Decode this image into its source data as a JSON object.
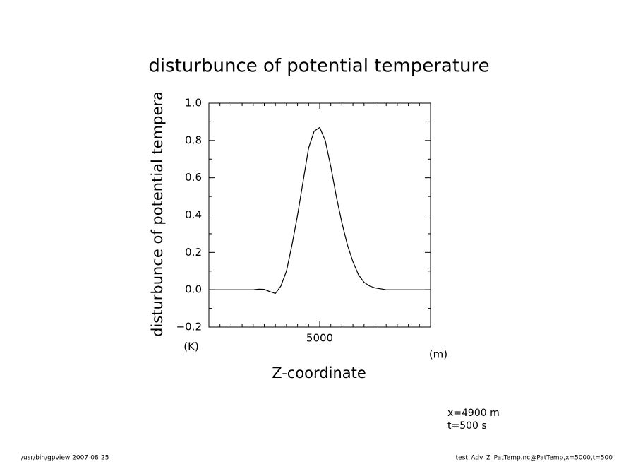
{
  "chart_data": {
    "type": "line",
    "title": "disturbunce of potential temperature",
    "y_label": "disturbunce of potential tempera",
    "y_unit": "(K)",
    "x_label": "Z-coordinate",
    "x_unit": "(m)",
    "annotations": [
      "x=4900 m",
      "t=500 s"
    ],
    "footer_left": "/usr/bin/gpview  2007-08-25",
    "footer_right": "test_Adv_Z_PatTemp.nc@PatTemp,x=5000,t=500",
    "x": [
      0,
      1000,
      2000,
      2250,
      2500,
      2750,
      3000,
      3250,
      3500,
      3750,
      4000,
      4250,
      4500,
      4750,
      5000,
      5250,
      5500,
      5750,
      6000,
      6250,
      6500,
      6750,
      7000,
      7250,
      7500,
      8000,
      9000,
      10000
    ],
    "series": [
      {
        "color": "#000000",
        "values": [
          0,
          0,
          0,
          0.003,
          0.002,
          -0.01,
          -0.02,
          0.02,
          0.1,
          0.24,
          0.4,
          0.58,
          0.76,
          0.85,
          0.87,
          0.8,
          0.66,
          0.5,
          0.36,
          0.24,
          0.15,
          0.08,
          0.04,
          0.02,
          0.01,
          0,
          0,
          0
        ]
      }
    ],
    "xlim": [
      0,
      10000
    ],
    "xticks": [
      5000
    ],
    "xminorticks": [
      500,
      1000,
      1500,
      2000,
      2500,
      3000,
      3500,
      4000,
      4500,
      5500,
      6000,
      6500,
      7000,
      7500,
      8000,
      8500,
      9000,
      9500
    ],
    "ylim": [
      -0.2,
      1.0
    ],
    "yticks": [
      {
        "value": -0.2,
        "label": "−0.2"
      },
      {
        "value": 0,
        "label": "0.0"
      },
      0.2,
      0.4,
      0.6,
      0.8,
      {
        "value": 1,
        "label": "1.0"
      }
    ],
    "yminorticks": [
      -0.1,
      0.1,
      0.3,
      0.5,
      0.7,
      0.9
    ]
  }
}
